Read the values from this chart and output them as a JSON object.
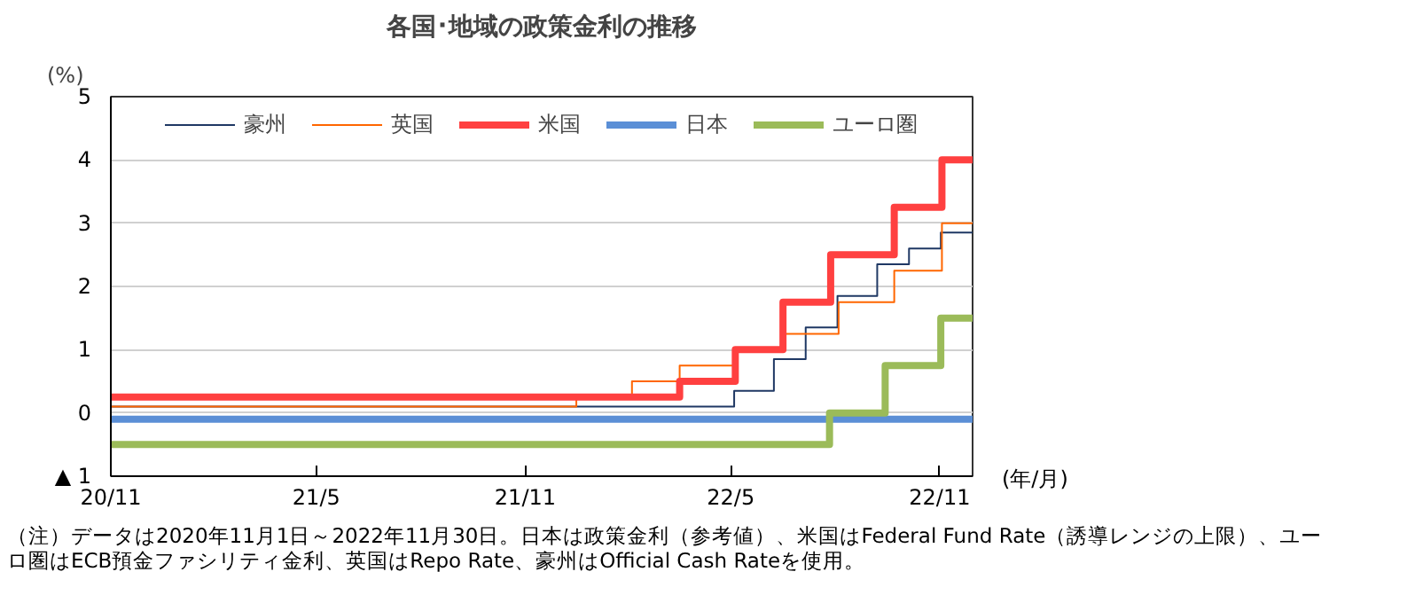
{
  "chart_data": {
    "type": "step",
    "title": "各国･地域の政策金利の推移",
    "ylabel": "(%)",
    "xlabel": "(年/月)",
    "annotations": [
      "（注）データは2020年11月1日～2022年11月30日。日本は政策金利（参考値）、米国はFederal Fund Rate（誘導レンジの上限）、ユーロ圏はECB預金ファシリティ金利、英国はRepo Rate、豪州はOfficial Cash Rateを使用。"
    ],
    "series": [
      {
        "name": "豪州",
        "color": "#1f3864",
        "x": [
          "2020-11-01",
          "2022-05-04",
          "2022-06-08",
          "2022-07-06",
          "2022-08-03",
          "2022-09-07",
          "2022-10-05",
          "2022-11-02",
          "2022-11-30"
        ],
        "values": [
          0.1,
          0.35,
          0.85,
          1.35,
          1.85,
          2.35,
          2.6,
          2.85,
          2.85
        ]
      },
      {
        "name": "英国",
        "color": "#ff6600",
        "x": [
          "2020-11-01",
          "2021-12-16",
          "2022-02-03",
          "2022-03-17",
          "2022-05-05",
          "2022-06-16",
          "2022-08-04",
          "2022-09-22",
          "2022-11-03",
          "2022-11-30"
        ],
        "values": [
          0.1,
          0.25,
          0.5,
          0.75,
          1.0,
          1.25,
          1.75,
          2.25,
          3.0,
          3.0
        ]
      },
      {
        "name": "米国",
        "color": "#ff4040",
        "x": [
          "2020-11-01",
          "2022-03-17",
          "2022-05-05",
          "2022-06-16",
          "2022-07-28",
          "2022-09-22",
          "2022-11-03",
          "2022-11-30"
        ],
        "values": [
          0.25,
          0.5,
          1.0,
          1.75,
          2.5,
          3.25,
          4.0,
          4.0
        ]
      },
      {
        "name": "日本",
        "color": "#5b8fd6",
        "x": [
          "2020-11-01",
          "2022-11-30"
        ],
        "values": [
          -0.1,
          -0.1
        ]
      },
      {
        "name": "ユーロ圏",
        "color": "#9bbb59",
        "x": [
          "2020-11-01",
          "2022-07-27",
          "2022-09-14",
          "2022-11-02",
          "2022-11-30"
        ],
        "values": [
          -0.5,
          0.0,
          0.75,
          1.5,
          1.5
        ]
      }
    ],
    "xlim": [
      "2020-11-01",
      "2022-11-30"
    ],
    "xticks": [
      {
        "value": "2020-11-01",
        "label": "20/11"
      },
      {
        "value": "2021-05-01",
        "label": "21/5"
      },
      {
        "value": "2021-11-01",
        "label": "21/11"
      },
      {
        "value": "2022-05-01",
        "label": "22/5"
      },
      {
        "value": "2022-11-01",
        "label": "22/11"
      }
    ],
    "ylim": [
      -1,
      5
    ],
    "yticks": [
      {
        "value": -1,
        "label": "▲ 1"
      },
      0,
      1,
      2,
      3,
      4,
      5
    ],
    "grid": "y",
    "legend": "top",
    "line_style": "solid"
  }
}
